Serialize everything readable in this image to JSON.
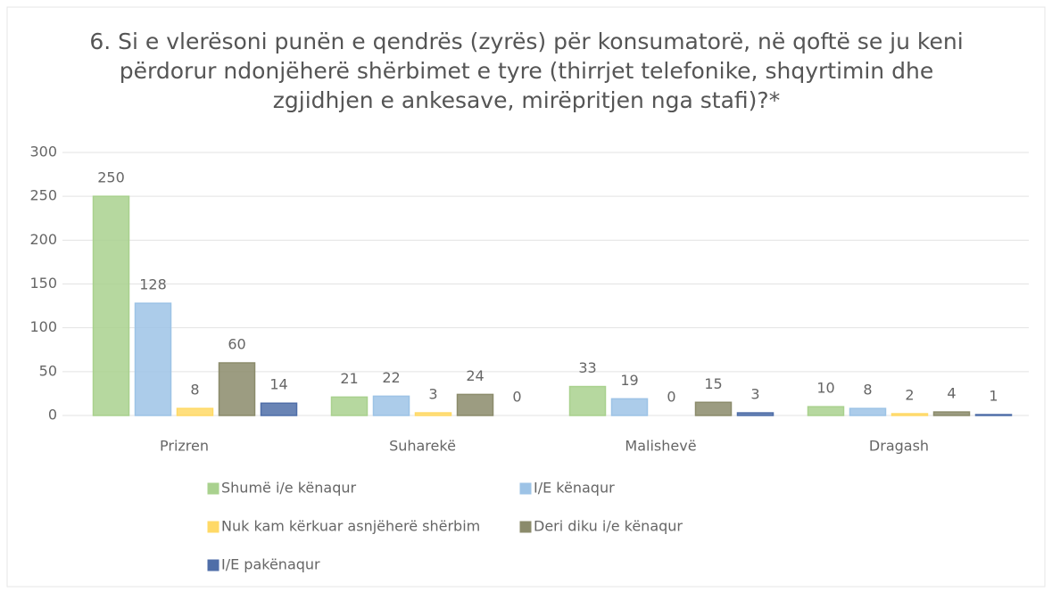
{
  "chart_data": {
    "type": "bar",
    "title": "6. Si e vlerësoni punën e qendrës (zyrës) për konsumatorë, në qoftë se ju keni përdorur ndonjëherë shërbimet e tyre (thirrjet telefonike, shqyrtimin dhe zgjidhjen e ankesave, mirëpritjen nga stafi)?*",
    "categories": [
      "Prizren",
      "Suharekë",
      "Malishevë",
      "Dragash"
    ],
    "series": [
      {
        "name": "Shumë i/e kënaqur",
        "color": "#a9d18e",
        "values": [
          250,
          21,
          33,
          10
        ]
      },
      {
        "name": "I/E kënaqur",
        "color": "#9dc3e6",
        "values": [
          128,
          22,
          19,
          8
        ]
      },
      {
        "name": "Nuk kam kërkuar asnjëherë shërbim",
        "color": "#ffd966",
        "values": [
          8,
          3,
          0,
          2
        ]
      },
      {
        "name": "Deri diku i/e kënaqur",
        "color": "#8b8b6b",
        "values": [
          60,
          24,
          15,
          4
        ]
      },
      {
        "name": "I/E pakënaqur",
        "color": "#4f6ea8",
        "values": [
          14,
          0,
          3,
          1
        ]
      }
    ],
    "ylim": [
      0,
      300
    ],
    "yticks": [
      0,
      50,
      100,
      150,
      200,
      250,
      300
    ],
    "grid": true,
    "legend": "bottom"
  }
}
